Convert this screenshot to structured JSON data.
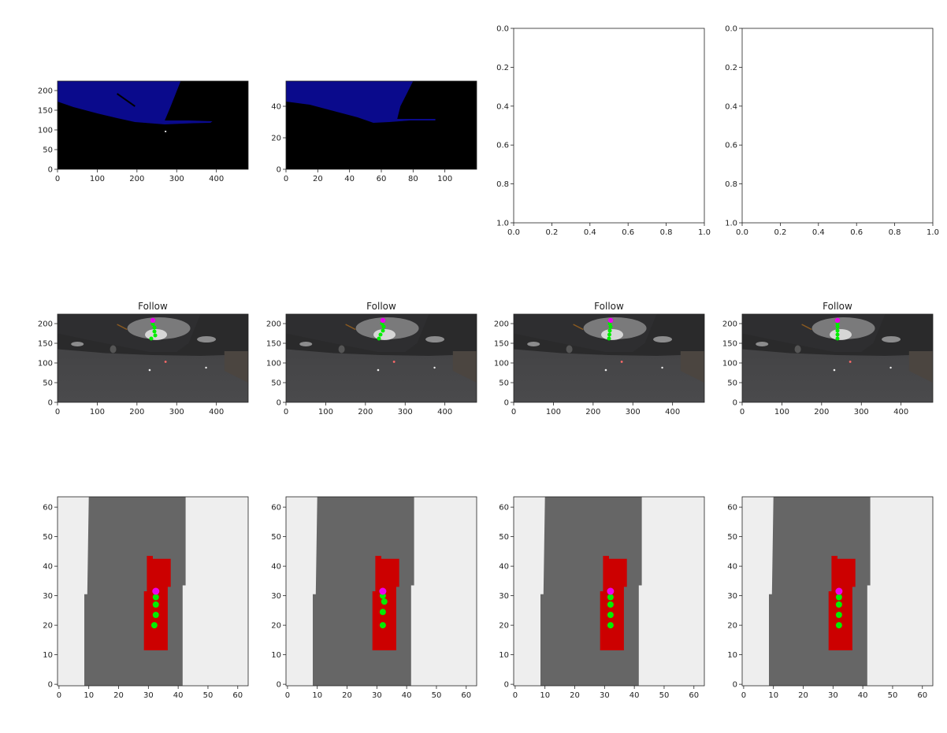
{
  "colors": {
    "background": "#000000",
    "road_blue": "#0a0a8c",
    "pole_green": "#4caf50",
    "pole_white": "#d8d8d8",
    "map_off_road": "#eeeeee",
    "map_road": "#666666",
    "map_ego": "#0b0b8a",
    "map_vehicle": "#cc0000",
    "map_lane_line": "#ffff22",
    "waypoint": "#00ee00",
    "current_point": "#ee00ee",
    "night_sky": "#3a3a3c",
    "night_road": "#2e2e30"
  },
  "chart_data": [
    {
      "id": "segmentation_full",
      "type": "image",
      "row": 0,
      "col": 0,
      "title": "",
      "xlim": [
        0,
        480
      ],
      "ylim": [
        224,
        0
      ],
      "x_ticks": [
        0,
        100,
        200,
        300,
        400
      ],
      "y_ticks": [
        0,
        50,
        100,
        150,
        200
      ],
      "content": "semantic segmentation: black background, blue drivable road, green and white poles"
    },
    {
      "id": "segmentation_small",
      "type": "image",
      "row": 0,
      "col": 1,
      "title": "",
      "xlim": [
        0,
        120
      ],
      "ylim": [
        56,
        0
      ],
      "x_ticks": [
        0,
        20,
        40,
        60,
        80,
        100
      ],
      "y_ticks": [
        0,
        20,
        40
      ],
      "content": "downsampled semantic segmentation: black background, blue drivable road"
    },
    {
      "id": "empty_axes_1",
      "type": "empty",
      "row": 0,
      "col": 2,
      "xlim": [
        0.0,
        1.0
      ],
      "ylim": [
        0.0,
        1.0
      ],
      "x_ticks": [
        "0.0",
        "0.2",
        "0.4",
        "0.6",
        "0.8",
        "1.0"
      ],
      "y_ticks": [
        "0.0",
        "0.2",
        "0.4",
        "0.6",
        "0.8",
        "1.0"
      ]
    },
    {
      "id": "empty_axes_2",
      "type": "empty",
      "row": 0,
      "col": 3,
      "xlim": [
        0.0,
        1.0
      ],
      "ylim": [
        0.0,
        1.0
      ],
      "x_ticks": [
        "0.0",
        "0.2",
        "0.4",
        "0.6",
        "0.8",
        "1.0"
      ],
      "y_ticks": [
        "0.0",
        "0.2",
        "0.4",
        "0.6",
        "0.8",
        "1.0"
      ]
    },
    {
      "id": "camera_1",
      "type": "image",
      "row": 1,
      "col": 0,
      "title": "Follow",
      "xlim": [
        0,
        480
      ],
      "ylim": [
        224,
        0
      ],
      "x_ticks": [
        0,
        100,
        200,
        300,
        400
      ],
      "y_ticks": [
        0,
        50,
        100,
        150,
        200
      ],
      "waypoints": [
        [
          236,
          162
        ],
        [
          246,
          170
        ],
        [
          244,
          180
        ],
        [
          244,
          190
        ],
        [
          240,
          199
        ]
      ],
      "current_point": [
        240,
        208
      ]
    },
    {
      "id": "camera_2",
      "type": "image",
      "row": 1,
      "col": 1,
      "title": "Follow",
      "xlim": [
        0,
        480
      ],
      "ylim": [
        224,
        0
      ],
      "x_ticks": [
        0,
        100,
        200,
        300,
        400
      ],
      "y_ticks": [
        0,
        50,
        100,
        150,
        200
      ],
      "waypoints": [
        [
          234,
          162
        ],
        [
          238,
          172
        ],
        [
          244,
          182
        ],
        [
          246,
          192
        ],
        [
          242,
          200
        ]
      ],
      "current_point": [
        244,
        208
      ]
    },
    {
      "id": "camera_3",
      "type": "image",
      "row": 1,
      "col": 2,
      "title": "Follow",
      "xlim": [
        0,
        480
      ],
      "ylim": [
        224,
        0
      ],
      "x_ticks": [
        0,
        100,
        200,
        300,
        400
      ],
      "y_ticks": [
        0,
        50,
        100,
        150,
        200
      ],
      "waypoints": [
        [
          240,
          162
        ],
        [
          241,
          172
        ],
        [
          242,
          182
        ],
        [
          244,
          192
        ],
        [
          242,
          200
        ]
      ],
      "current_point": [
        244,
        208
      ]
    },
    {
      "id": "camera_4",
      "type": "image",
      "row": 1,
      "col": 3,
      "title": "Follow",
      "xlim": [
        0,
        480
      ],
      "ylim": [
        224,
        0
      ],
      "x_ticks": [
        0,
        100,
        200,
        300,
        400
      ],
      "y_ticks": [
        0,
        50,
        100,
        150,
        200
      ],
      "waypoints": [
        [
          240,
          162
        ],
        [
          240,
          172
        ],
        [
          240,
          182
        ],
        [
          240,
          192
        ],
        [
          240,
          200
        ]
      ],
      "current_point": [
        240,
        208
      ]
    },
    {
      "id": "bev_map_1",
      "type": "image",
      "row": 2,
      "col": 0,
      "title": "",
      "xlim": [
        -0.5,
        63.5
      ],
      "ylim": [
        63.5,
        -0.5
      ],
      "x_ticks": [
        0,
        10,
        20,
        30,
        40,
        50,
        60
      ],
      "y_ticks": [
        0,
        10,
        20,
        30,
        40,
        50,
        60
      ],
      "waypoints": [
        [
          32,
          20
        ],
        [
          32.5,
          23.5
        ],
        [
          32.5,
          27
        ],
        [
          32.5,
          29.5
        ]
      ],
      "current_point": [
        32.5,
        31.5
      ]
    },
    {
      "id": "bev_map_2",
      "type": "image",
      "row": 2,
      "col": 1,
      "title": "",
      "xlim": [
        -0.5,
        63.5
      ],
      "ylim": [
        63.5,
        -0.5
      ],
      "x_ticks": [
        0,
        10,
        20,
        30,
        40,
        50,
        60
      ],
      "y_ticks": [
        0,
        10,
        20,
        30,
        40,
        50,
        60
      ],
      "waypoints": [
        [
          32,
          20
        ],
        [
          32,
          24.5
        ],
        [
          32.5,
          28
        ],
        [
          32,
          30
        ]
      ],
      "current_point": [
        32,
        31.5
      ]
    },
    {
      "id": "bev_map_3",
      "type": "image",
      "row": 2,
      "col": 2,
      "title": "",
      "xlim": [
        -0.5,
        63.5
      ],
      "ylim": [
        63.5,
        -0.5
      ],
      "x_ticks": [
        0,
        10,
        20,
        30,
        40,
        50,
        60
      ],
      "y_ticks": [
        0,
        10,
        20,
        30,
        40,
        50,
        60
      ],
      "waypoints": [
        [
          32,
          20
        ],
        [
          32,
          23.5
        ],
        [
          32,
          27
        ],
        [
          32,
          29.5
        ]
      ],
      "current_point": [
        32,
        31.5
      ]
    },
    {
      "id": "bev_map_4",
      "type": "image",
      "row": 2,
      "col": 3,
      "title": "",
      "xlim": [
        -0.5,
        63.5
      ],
      "ylim": [
        63.5,
        -0.5
      ],
      "x_ticks": [
        0,
        10,
        20,
        30,
        40,
        50,
        60
      ],
      "y_ticks": [
        0,
        10,
        20,
        30,
        40,
        50,
        60
      ],
      "waypoints": [
        [
          32,
          20
        ],
        [
          32,
          23.5
        ],
        [
          32,
          27
        ],
        [
          32,
          29.5
        ]
      ],
      "current_point": [
        32,
        31.5
      ]
    }
  ]
}
